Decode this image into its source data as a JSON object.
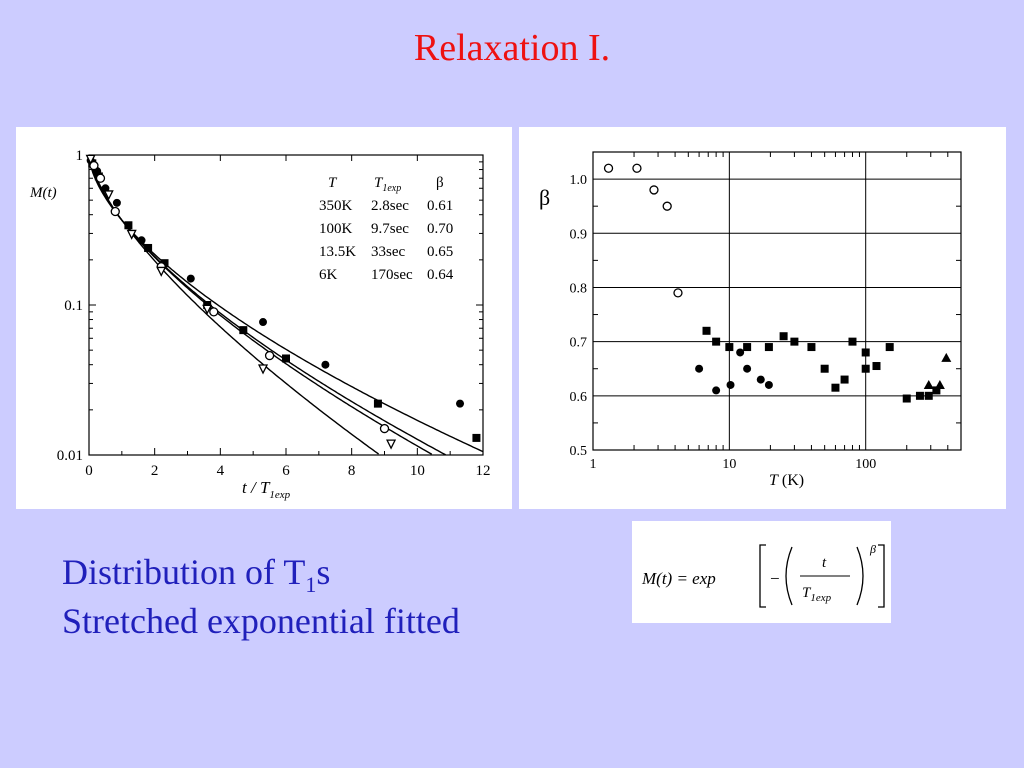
{
  "slide": {
    "title": "Relaxation I."
  },
  "caption": {
    "line1_prefix": "Distribution of T",
    "line1_sub": "1",
    "line1_suffix": "s",
    "line2": "Stretched exponential fitted"
  },
  "formula": {
    "lhs": "M(t) = exp",
    "numerator": "t",
    "denominator": "T",
    "denominator_sub": "1exp",
    "exponent": "β"
  },
  "chart_data": [
    {
      "type": "scatter",
      "ylabel": "M(t)",
      "xlabel_main": "t / T",
      "xlabel_sub": "1exp",
      "xlim": [
        0,
        12
      ],
      "ylim": [
        0.01,
        1
      ],
      "yscale": "log",
      "xticks": [
        "0",
        "2",
        "4",
        "6",
        "8",
        "10",
        "12"
      ],
      "yticks": [
        {
          "v": 1,
          "label": "1"
        },
        {
          "v": 0.1,
          "label": "0.1"
        },
        {
          "v": 0.01,
          "label": "0.01"
        }
      ],
      "legend": {
        "header": {
          "T": "T",
          "T1": "T",
          "T1_sub": "1exp",
          "beta": "β"
        },
        "rows": [
          {
            "T": "350K",
            "T1exp": "2.8sec",
            "beta": "0.61",
            "beta_val": 0.61
          },
          {
            "T": "100K",
            "T1exp": "9.7sec",
            "beta": "0.70",
            "beta_val": 0.7
          },
          {
            "T": "13.5K",
            "T1exp": "33sec",
            "beta": "0.65",
            "beta_val": 0.65
          },
          {
            "T": "6K",
            "T1exp": "170sec",
            "beta": "0.64",
            "beta_val": 0.64
          }
        ]
      },
      "series": [
        {
          "marker": "filled-circle",
          "points": [
            [
              0.05,
              0.92
            ],
            [
              0.25,
              0.78
            ],
            [
              0.5,
              0.6
            ],
            [
              0.85,
              0.48
            ],
            [
              1.6,
              0.27
            ],
            [
              3.1,
              0.15
            ],
            [
              5.3,
              0.077
            ],
            [
              7.2,
              0.04
            ],
            [
              11.3,
              0.022
            ]
          ]
        },
        {
          "marker": "filled-square",
          "points": [
            [
              0.1,
              0.88
            ],
            [
              0.3,
              0.72
            ],
            [
              1.2,
              0.34
            ],
            [
              1.8,
              0.24
            ],
            [
              2.3,
              0.19
            ],
            [
              3.6,
              0.1
            ],
            [
              4.7,
              0.068
            ],
            [
              6.0,
              0.044
            ],
            [
              8.8,
              0.022
            ],
            [
              11.8,
              0.013
            ]
          ]
        },
        {
          "marker": "open-circle",
          "points": [
            [
              0.15,
              0.85
            ],
            [
              0.35,
              0.7
            ],
            [
              0.8,
              0.42
            ],
            [
              2.2,
              0.18
            ],
            [
              3.8,
              0.09
            ],
            [
              5.5,
              0.046
            ],
            [
              9.0,
              0.015
            ]
          ]
        },
        {
          "marker": "open-triangle-down",
          "points": [
            [
              0.05,
              0.95
            ],
            [
              0.6,
              0.55
            ],
            [
              1.3,
              0.3
            ],
            [
              2.2,
              0.17
            ],
            [
              3.6,
              0.095
            ],
            [
              5.3,
              0.038
            ],
            [
              9.2,
              0.012
            ]
          ]
        }
      ]
    },
    {
      "type": "scatter",
      "ylabel": "β",
      "xlabel_main": "T",
      "xlabel_unit": "(K)",
      "xscale": "log",
      "xlim": [
        1,
        500
      ],
      "ylim": [
        0.5,
        1.05
      ],
      "xticks": [
        {
          "v": 1,
          "label": "1"
        },
        {
          "v": 10,
          "label": "10"
        },
        {
          "v": 100,
          "label": "100"
        }
      ],
      "yticks": [
        "0.5",
        "0.6",
        "0.7",
        "0.8",
        "0.9",
        "1.0"
      ],
      "grid": true,
      "series": [
        {
          "marker": "open-circle",
          "points": [
            [
              1.3,
              1.02
            ],
            [
              2.1,
              1.02
            ],
            [
              2.8,
              0.98
            ],
            [
              3.5,
              0.95
            ],
            [
              4.2,
              0.79
            ]
          ]
        },
        {
          "marker": "filled-circle",
          "points": [
            [
              6.0,
              0.65
            ],
            [
              8.0,
              0.61
            ],
            [
              10.2,
              0.62
            ],
            [
              12.0,
              0.68
            ],
            [
              13.5,
              0.65
            ],
            [
              17.0,
              0.63
            ],
            [
              19.5,
              0.62
            ]
          ]
        },
        {
          "marker": "filled-square",
          "points": [
            [
              6.8,
              0.72
            ],
            [
              8.0,
              0.7
            ],
            [
              10.0,
              0.69
            ],
            [
              13.5,
              0.69
            ],
            [
              19.5,
              0.69
            ],
            [
              25.0,
              0.71
            ],
            [
              30.0,
              0.7
            ],
            [
              40.0,
              0.69
            ],
            [
              50.0,
              0.65
            ],
            [
              60.0,
              0.615
            ],
            [
              70.0,
              0.63
            ],
            [
              80.0,
              0.7
            ],
            [
              100.0,
              0.68
            ],
            [
              100.0,
              0.65
            ],
            [
              120.0,
              0.655
            ],
            [
              150.0,
              0.69
            ],
            [
              200.0,
              0.595
            ],
            [
              250.0,
              0.6
            ],
            [
              290.0,
              0.6
            ],
            [
              330.0,
              0.61
            ]
          ]
        },
        {
          "marker": "filled-triangle-up",
          "points": [
            [
              290.0,
              0.62
            ],
            [
              350.0,
              0.62
            ],
            [
              390.0,
              0.67
            ]
          ]
        }
      ]
    }
  ]
}
